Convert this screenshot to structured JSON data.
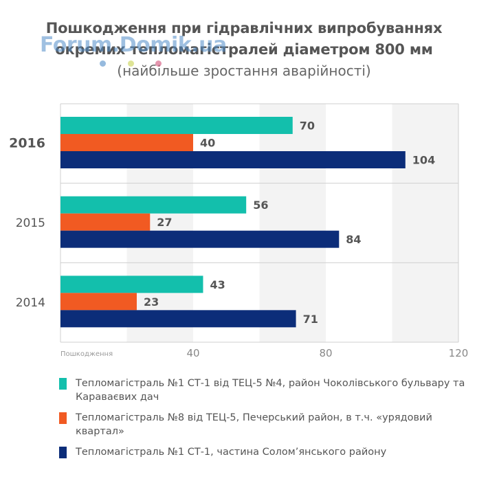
{
  "title_lines": [
    "Пошкодження при гідравлічних випробуваннях",
    "окремих тепломагістралей діаметром 800 мм"
  ],
  "subtitle": "(найбільше зростання аварійності)",
  "watermark": "Forum.Domik.ua",
  "colors": {
    "s1": "#13bfac",
    "s2": "#f15a22",
    "s3": "#0c2d79",
    "band": "#f3f3f3",
    "grid": "#cfcfcf",
    "text": "#555555"
  },
  "chart_data": {
    "type": "bar",
    "orientation": "horizontal",
    "categories": [
      "2016",
      "2015",
      "2014"
    ],
    "highlighted_category": "2016",
    "series": [
      {
        "name": "Тепломагістраль №1 СТ-1 від ТЕЦ-5 №4, район Чоколівського бульвару та Караваєвих дач",
        "values": [
          70,
          56,
          43
        ]
      },
      {
        "name": "Тепломагістраль №8 від ТЕЦ-5, Печерський район, в т.ч. «урядовий квартал»",
        "values": [
          40,
          27,
          23
        ]
      },
      {
        "name": "Тепломагістраль №1 СТ-1, частина Солом’янського району",
        "values": [
          104,
          84,
          71
        ]
      }
    ],
    "xlabel": "Пошкодження",
    "xticks": [
      40,
      80,
      120
    ],
    "xlim": [
      0,
      120
    ],
    "legend_position": "bottom"
  }
}
